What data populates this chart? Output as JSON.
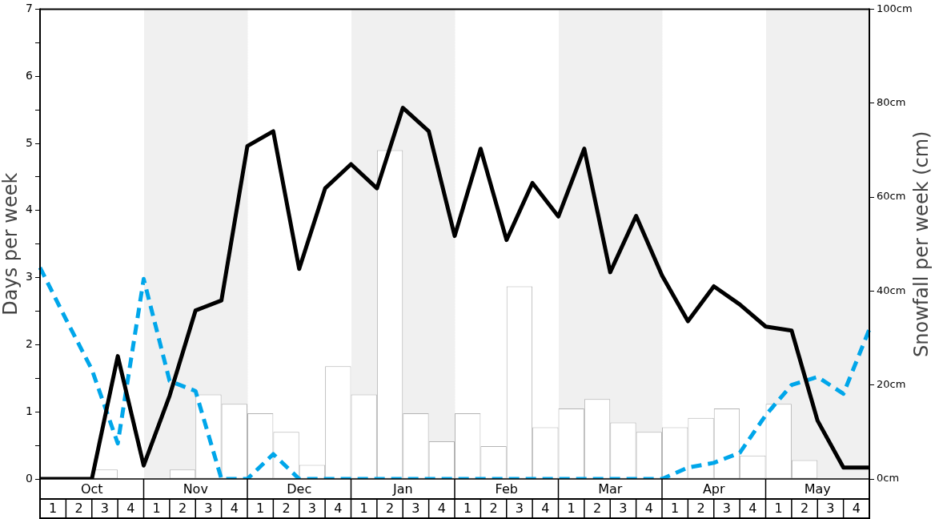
{
  "chart_data": {
    "type": "bar",
    "ylabel": "Days per week",
    "y2label": "Snowfall per week (cm)",
    "categories": [
      null,
      "1",
      null,
      "2",
      null,
      "3",
      null,
      "4",
      null,
      "1",
      null,
      "2",
      null,
      "3",
      null,
      "4",
      null,
      "1",
      null,
      "2",
      null,
      "3",
      null,
      "4",
      null,
      "1",
      null,
      "2",
      null,
      "3",
      null,
      "4",
      null,
      "1",
      null,
      "2",
      null,
      "3",
      null,
      "4",
      null,
      "1",
      null,
      "2",
      null,
      "3",
      null,
      "4",
      null,
      "1",
      null,
      "2",
      null,
      "3",
      null,
      "4",
      null,
      "1",
      null,
      "2",
      null,
      "3",
      null,
      "4",
      null
    ],
    "annotations": [
      "Oct",
      "Nov",
      "Dec",
      "Jan",
      "Feb",
      "Mar",
      "Apr",
      "May"
    ],
    "ylim": [
      0,
      7
    ],
    "yticks": [
      0,
      {
        "value": 0.5,
        "label": null
      },
      1,
      {
        "value": 1.5,
        "label": null
      },
      2,
      {
        "value": 2.5,
        "label": null
      },
      3,
      {
        "value": 3.5,
        "label": null
      },
      4,
      {
        "value": 4.5,
        "label": null
      },
      5,
      {
        "value": 5.5,
        "label": null
      },
      6,
      {
        "value": 6.5,
        "label": null
      },
      7
    ],
    "y2lim": [
      0,
      100
    ],
    "y2ticks": [
      {
        "value": 0,
        "label": "0cm"
      },
      {
        "value": 20,
        "label": "20cm"
      },
      {
        "value": 40,
        "label": "40cm"
      },
      {
        "value": 60,
        "label": "60cm"
      },
      {
        "value": 80,
        "label": "80cm"
      },
      {
        "value": 100,
        "label": "100cm"
      }
    ],
    "series": [
      {
        "color": "#ffffff",
        "axis": "y2",
        "values": [
          null,
          0,
          null,
          0,
          null,
          2,
          null,
          0,
          null,
          0,
          null,
          2,
          null,
          18,
          null,
          16,
          null,
          14,
          null,
          10,
          null,
          3,
          null,
          24,
          null,
          18,
          null,
          70,
          null,
          14,
          null,
          8,
          null,
          14,
          null,
          7,
          null,
          41,
          null,
          11,
          null,
          15,
          null,
          17,
          null,
          12,
          null,
          10,
          null,
          11,
          null,
          13,
          null,
          15,
          null,
          5,
          null,
          16,
          null,
          4,
          null,
          0,
          null,
          0,
          null
        ]
      },
      {
        "type": "line",
        "color": "#00a6ea",
        "line_style": "dashed",
        "values": [
          3.15,
          null,
          2.38,
          null,
          1.63,
          null,
          0.53,
          null,
          2.98,
          null,
          1.46,
          null,
          1.31,
          null,
          0,
          null,
          0,
          null,
          0.37,
          null,
          0,
          null,
          0,
          null,
          0,
          null,
          0,
          null,
          0,
          null,
          0,
          null,
          0,
          null,
          0,
          null,
          0,
          null,
          0,
          null,
          0,
          null,
          0,
          null,
          0,
          null,
          0,
          null,
          0,
          null,
          0.17,
          null,
          0.24,
          null,
          0.39,
          null,
          0.95,
          null,
          1.4,
          null,
          1.52,
          null,
          1.27,
          null,
          2.23
        ]
      },
      {
        "type": "line",
        "color": "#000000",
        "values": [
          0,
          null,
          0,
          null,
          0,
          null,
          1.83,
          null,
          0.2,
          null,
          1.24,
          null,
          2.51,
          null,
          2.66,
          null,
          4.96,
          null,
          5.18,
          null,
          3.13,
          null,
          4.33,
          null,
          4.69,
          null,
          4.33,
          null,
          5.53,
          null,
          5.18,
          null,
          3.62,
          null,
          4.92,
          null,
          3.56,
          null,
          4.41,
          null,
          3.91,
          null,
          4.92,
          null,
          3.08,
          null,
          3.92,
          null,
          3.03,
          null,
          2.35,
          null,
          2.87,
          null,
          2.6,
          null,
          2.27,
          null,
          2.21,
          null,
          0.87,
          null,
          0.17,
          null,
          0.17
        ]
      }
    ]
  }
}
